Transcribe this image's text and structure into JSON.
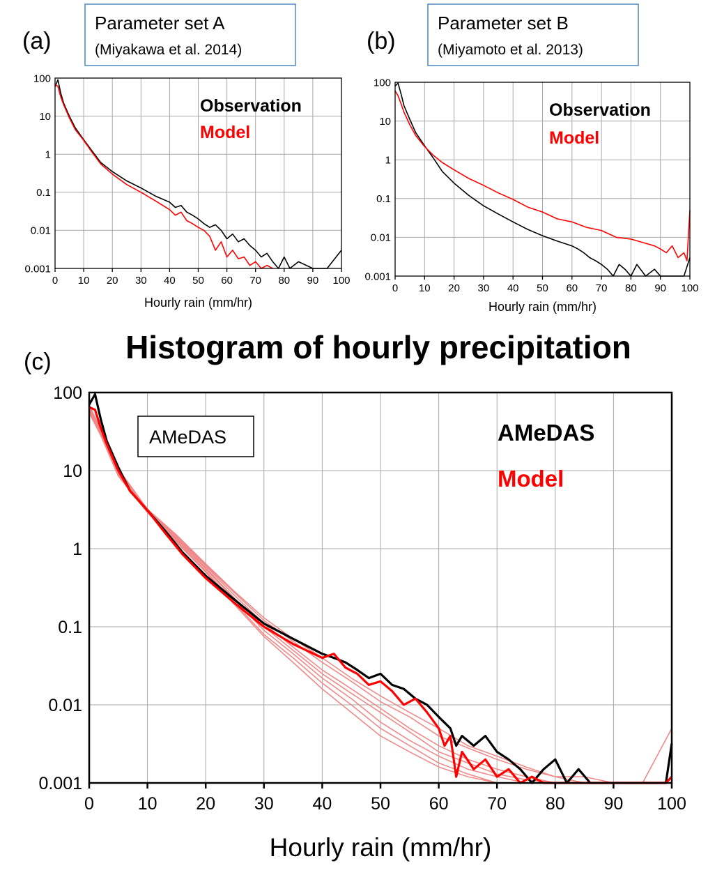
{
  "figure_title": "Histogram of hourly precipitation",
  "colors": {
    "observation": "#000000",
    "model": "#ff0000",
    "ensemble": "#f08a8a",
    "box_border_a": "#4a86c4",
    "box_border_b": "#4a86c4"
  },
  "chart_data": [
    {
      "panel": "(a)",
      "type": "line",
      "annotation_box": [
        "Parameter set A",
        "(Miyakawa et al. 2014)"
      ],
      "title": "",
      "xlabel": "Hourly rain (mm/hr)",
      "ylabel": "",
      "xlim": [
        0,
        100
      ],
      "ylim": [
        0.001,
        100
      ],
      "yscale": "log",
      "grid": true,
      "legend_placement": "top-right",
      "x_ticks": [
        0,
        10,
        20,
        30,
        40,
        50,
        60,
        70,
        80,
        90,
        100
      ],
      "y_ticks": [
        "100",
        "10",
        "1",
        "0.1",
        "0.01",
        "0.001"
      ],
      "series": [
        {
          "name": "Observation",
          "color": "#000000",
          "x": [
            0,
            1,
            2,
            3,
            5,
            7,
            10,
            13,
            16,
            20,
            25,
            30,
            35,
            40,
            42,
            44,
            46,
            48,
            50,
            52,
            54,
            56,
            58,
            60,
            62,
            64,
            66,
            68,
            70,
            72,
            74,
            76,
            78,
            80,
            82,
            85,
            90,
            95,
            100
          ],
          "y": [
            60,
            90,
            40,
            22,
            10,
            5,
            2.4,
            1.2,
            0.6,
            0.35,
            0.2,
            0.13,
            0.08,
            0.055,
            0.04,
            0.045,
            0.03,
            0.025,
            0.02,
            0.015,
            0.012,
            0.014,
            0.01,
            0.006,
            0.008,
            0.005,
            0.006,
            0.004,
            0.003,
            0.002,
            0.0025,
            0.0015,
            0.001,
            0.002,
            0.001,
            0.0015,
            0.001,
            0.001,
            0.003
          ]
        },
        {
          "name": "Model",
          "color": "#ff0000",
          "x": [
            0,
            1,
            2,
            3,
            5,
            7,
            10,
            13,
            16,
            20,
            25,
            30,
            35,
            40,
            42,
            44,
            46,
            48,
            50,
            52,
            54,
            56,
            58,
            60,
            62,
            64,
            66,
            68,
            70,
            72,
            74,
            76
          ],
          "y": [
            70,
            60,
            32,
            20,
            9,
            4.5,
            2.3,
            1.1,
            0.55,
            0.3,
            0.16,
            0.1,
            0.06,
            0.035,
            0.025,
            0.03,
            0.018,
            0.015,
            0.012,
            0.01,
            0.007,
            0.003,
            0.005,
            0.002,
            0.003,
            0.0018,
            0.002,
            0.0012,
            0.0015,
            0.001,
            0.0012,
            0.001
          ]
        }
      ]
    },
    {
      "panel": "(b)",
      "type": "line",
      "annotation_box": [
        "Parameter set B",
        "(Miyamoto et al. 2013)"
      ],
      "title": "",
      "xlabel": "Hourly rain (mm/hr)",
      "ylabel": "",
      "xlim": [
        0,
        100
      ],
      "ylim": [
        0.001,
        100
      ],
      "yscale": "log",
      "grid": true,
      "legend_placement": "top-right",
      "x_ticks": [
        0,
        10,
        20,
        30,
        40,
        50,
        60,
        70,
        80,
        90,
        100
      ],
      "y_ticks": [
        "100",
        "10",
        "1",
        "0.1",
        "0.01",
        "0.001"
      ],
      "series": [
        {
          "name": "Observation",
          "color": "#000000",
          "x": [
            0,
            1,
            2,
            3,
            5,
            7,
            10,
            13,
            16,
            20,
            25,
            30,
            35,
            40,
            45,
            50,
            55,
            60,
            62,
            64,
            66,
            68,
            70,
            72,
            74,
            76,
            78,
            80,
            82,
            85,
            88,
            90,
            92,
            95,
            98,
            100
          ],
          "y": [
            80,
            95,
            50,
            25,
            11,
            5,
            2.3,
            1.1,
            0.5,
            0.25,
            0.12,
            0.065,
            0.04,
            0.025,
            0.016,
            0.011,
            0.008,
            0.006,
            0.005,
            0.004,
            0.003,
            0.0025,
            0.002,
            0.0015,
            0.001,
            0.002,
            0.0015,
            0.001,
            0.002,
            0.001,
            0.0015,
            0.001,
            0.001,
            0.001,
            0.001,
            0.003
          ]
        },
        {
          "name": "Model",
          "color": "#ff0000",
          "x": [
            0,
            1,
            2,
            3,
            5,
            7,
            10,
            13,
            16,
            20,
            25,
            30,
            35,
            40,
            45,
            50,
            55,
            60,
            65,
            70,
            75,
            80,
            85,
            88,
            90,
            92,
            94,
            96,
            98,
            99,
            100
          ],
          "y": [
            60,
            45,
            28,
            17,
            8,
            4.2,
            2.2,
            1.3,
            0.85,
            0.55,
            0.33,
            0.22,
            0.14,
            0.095,
            0.06,
            0.045,
            0.03,
            0.025,
            0.018,
            0.015,
            0.01,
            0.009,
            0.007,
            0.006,
            0.005,
            0.004,
            0.006,
            0.003,
            0.004,
            0.0025,
            0.05
          ]
        }
      ]
    },
    {
      "panel": "(c)",
      "type": "line",
      "annotation_box": [
        "AMeDAS"
      ],
      "title": "Histogram of hourly precipitation",
      "xlabel": "Hourly rain (mm/hr)",
      "ylabel": "",
      "xlim": [
        0,
        100
      ],
      "ylim": [
        0.001,
        100
      ],
      "yscale": "log",
      "grid": true,
      "legend_placement": "top-right",
      "x_ticks": [
        0,
        10,
        20,
        30,
        40,
        50,
        60,
        70,
        80,
        90,
        100
      ],
      "y_ticks": [
        "100",
        "10",
        "1",
        "0.1",
        "0.01",
        "0.001"
      ],
      "series": [
        {
          "name": "AMeDAS",
          "color": "#000000",
          "x": [
            0,
            1,
            2,
            3,
            5,
            7,
            10,
            13,
            16,
            20,
            25,
            30,
            35,
            40,
            42,
            44,
            46,
            48,
            50,
            52,
            54,
            56,
            58,
            60,
            62,
            63,
            64,
            66,
            68,
            70,
            72,
            74,
            76,
            78,
            80,
            82,
            84,
            86,
            88,
            90,
            95,
            99,
            100
          ],
          "y": [
            70,
            95,
            45,
            24,
            11,
            5.5,
            3.1,
            1.7,
            0.9,
            0.45,
            0.22,
            0.11,
            0.07,
            0.045,
            0.04,
            0.035,
            0.028,
            0.022,
            0.025,
            0.018,
            0.016,
            0.012,
            0.01,
            0.007,
            0.005,
            0.003,
            0.004,
            0.003,
            0.004,
            0.0025,
            0.002,
            0.0015,
            0.001,
            0.0015,
            0.002,
            0.001,
            0.0015,
            0.001,
            0.001,
            0.001,
            0.001,
            0.001,
            0.0032
          ]
        },
        {
          "name": "Model",
          "color": "#ff0000",
          "x": [
            0,
            1,
            2,
            3,
            5,
            7,
            10,
            13,
            16,
            20,
            25,
            30,
            35,
            40,
            42,
            44,
            46,
            48,
            50,
            52,
            54,
            56,
            58,
            60,
            61,
            62,
            63,
            64,
            66,
            68,
            70,
            72,
            74,
            76,
            78,
            80,
            82,
            84,
            99,
            100
          ],
          "y": [
            65,
            60,
            35,
            22,
            10,
            5.5,
            3.1,
            1.6,
            0.85,
            0.42,
            0.2,
            0.1,
            0.06,
            0.04,
            0.045,
            0.03,
            0.025,
            0.018,
            0.02,
            0.015,
            0.01,
            0.012,
            0.008,
            0.005,
            0.003,
            0.004,
            0.0012,
            0.0025,
            0.0015,
            0.002,
            0.0012,
            0.0015,
            0.001,
            0.0012,
            0.001,
            0.001,
            0.001,
            0.001,
            0.001,
            0.0012
          ]
        },
        {
          "color": "#f08a8a",
          "x": [
            0,
            2,
            5,
            10,
            15,
            20,
            25,
            30,
            35,
            40,
            45,
            50,
            55,
            60,
            65,
            70,
            75,
            80
          ],
          "y": [
            60,
            30,
            9,
            3.0,
            1.3,
            0.55,
            0.22,
            0.09,
            0.045,
            0.022,
            0.012,
            0.006,
            0.0035,
            0.0022,
            0.0015,
            0.0012,
            0.001,
            0.001
          ]
        },
        {
          "color": "#f08a8a",
          "x": [
            0,
            2,
            5,
            10,
            15,
            20,
            25,
            30,
            35,
            40,
            45,
            50,
            55,
            60,
            65,
            70,
            75,
            80,
            85
          ],
          "y": [
            70,
            32,
            10,
            3.1,
            1.4,
            0.6,
            0.25,
            0.11,
            0.055,
            0.028,
            0.016,
            0.009,
            0.005,
            0.003,
            0.002,
            0.0015,
            0.0012,
            0.001,
            0.001
          ]
        },
        {
          "color": "#f08a8a",
          "x": [
            0,
            2,
            5,
            10,
            15,
            20,
            25,
            30,
            35,
            40,
            45,
            50,
            55,
            60,
            65,
            70,
            75
          ],
          "y": [
            55,
            28,
            8.5,
            2.9,
            1.2,
            0.5,
            0.19,
            0.075,
            0.035,
            0.016,
            0.008,
            0.004,
            0.0025,
            0.0016,
            0.0012,
            0.001,
            0.001
          ]
        },
        {
          "color": "#f08a8a",
          "x": [
            0,
            2,
            5,
            10,
            15,
            20,
            25,
            30,
            35,
            40,
            45,
            50,
            55,
            60,
            65,
            70,
            75,
            80,
            85,
            90
          ],
          "y": [
            65,
            33,
            10,
            3.2,
            1.45,
            0.62,
            0.27,
            0.12,
            0.065,
            0.035,
            0.02,
            0.011,
            0.007,
            0.004,
            0.0028,
            0.002,
            0.0015,
            0.0012,
            0.001,
            0.001
          ]
        },
        {
          "color": "#f08a8a",
          "x": [
            0,
            2,
            5,
            10,
            15,
            20,
            25,
            30,
            35,
            40,
            45,
            50,
            55,
            60,
            65,
            70,
            75,
            80,
            85
          ],
          "y": [
            62,
            31,
            9.5,
            3.0,
            1.35,
            0.57,
            0.23,
            0.1,
            0.05,
            0.025,
            0.014,
            0.008,
            0.0045,
            0.0025,
            0.0018,
            0.0013,
            0.0011,
            0.001,
            0.001
          ]
        },
        {
          "color": "#f08a8a",
          "x": [
            0,
            2,
            5,
            10,
            15,
            20,
            25,
            30,
            35,
            40,
            45,
            50,
            55,
            60,
            65,
            70,
            75,
            80
          ],
          "y": [
            58,
            29,
            9,
            2.95,
            1.25,
            0.52,
            0.2,
            0.08,
            0.04,
            0.019,
            0.01,
            0.005,
            0.003,
            0.0018,
            0.0013,
            0.001,
            0.001,
            0.001
          ]
        },
        {
          "color": "#f08a8a",
          "x": [
            0,
            2,
            5,
            10,
            15,
            20,
            25,
            30,
            35,
            40,
            45,
            50,
            55,
            60,
            65,
            70,
            75,
            80,
            85,
            90,
            95,
            100
          ],
          "y": [
            68,
            34,
            10.5,
            3.2,
            1.5,
            0.64,
            0.28,
            0.13,
            0.07,
            0.04,
            0.022,
            0.013,
            0.008,
            0.005,
            0.003,
            0.0022,
            0.0016,
            0.0012,
            0.0012,
            0.001,
            0.001,
            0.005
          ]
        }
      ]
    }
  ]
}
